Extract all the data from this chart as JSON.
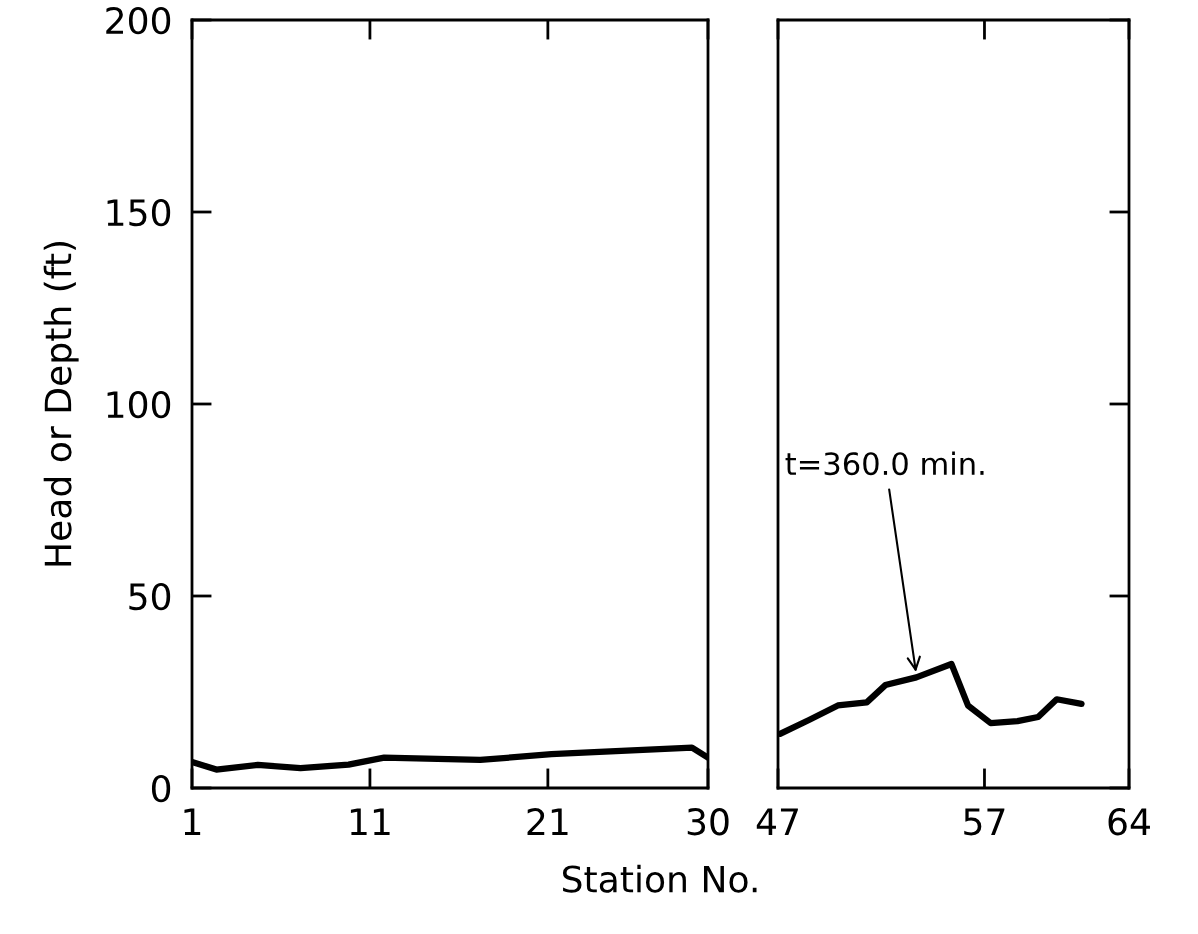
{
  "chart_data": [
    {
      "type": "line",
      "xlabel": "Station No.",
      "ylabel": "Head or Depth (ft)",
      "x": [
        1.0,
        2.37,
        4.7,
        7.1,
        9.8,
        11.8,
        17.2,
        21.2,
        23.9,
        29.1,
        30.0
      ],
      "series": [
        {
          "color": "#000000",
          "values": [
            6.8,
            4.8,
            6.0,
            5.2,
            6.1,
            7.9,
            7.3,
            8.8,
            9.4,
            10.5,
            7.9
          ]
        }
      ],
      "xlim": [
        1,
        30
      ],
      "xticks": [
        1,
        11,
        21,
        30
      ],
      "ylim": [
        0,
        200
      ],
      "yticks": [
        0,
        50,
        100,
        150,
        200
      ],
      "grid": false,
      "legend": false,
      "marker": "none",
      "line_style": "solid"
    },
    {
      "type": "line",
      "x": [
        47.1,
        48.5,
        49.9,
        51.3,
        52.2,
        53.7,
        55.4,
        56.2,
        57.3,
        58.6,
        59.6,
        60.5,
        61.7
      ],
      "series": [
        {
          "color": "#000000",
          "values": [
            14.1,
            17.7,
            21.5,
            22.3,
            26.8,
            28.8,
            32.3,
            21.5,
            16.9,
            17.4,
            18.5,
            23.1,
            21.9
          ]
        }
      ],
      "xlim": [
        47,
        64
      ],
      "xticks": [
        47,
        57,
        64
      ],
      "ylim": [
        0,
        200
      ],
      "yticks": [
        0,
        50,
        100,
        150,
        200
      ],
      "tick_labels": "x",
      "annotations": [
        {
          "text": "t=360.0 min.",
          "x": 53.7,
          "y": 29.5
        }
      ],
      "grid": false,
      "legend": false,
      "marker": "none",
      "line_style": "solid"
    }
  ]
}
